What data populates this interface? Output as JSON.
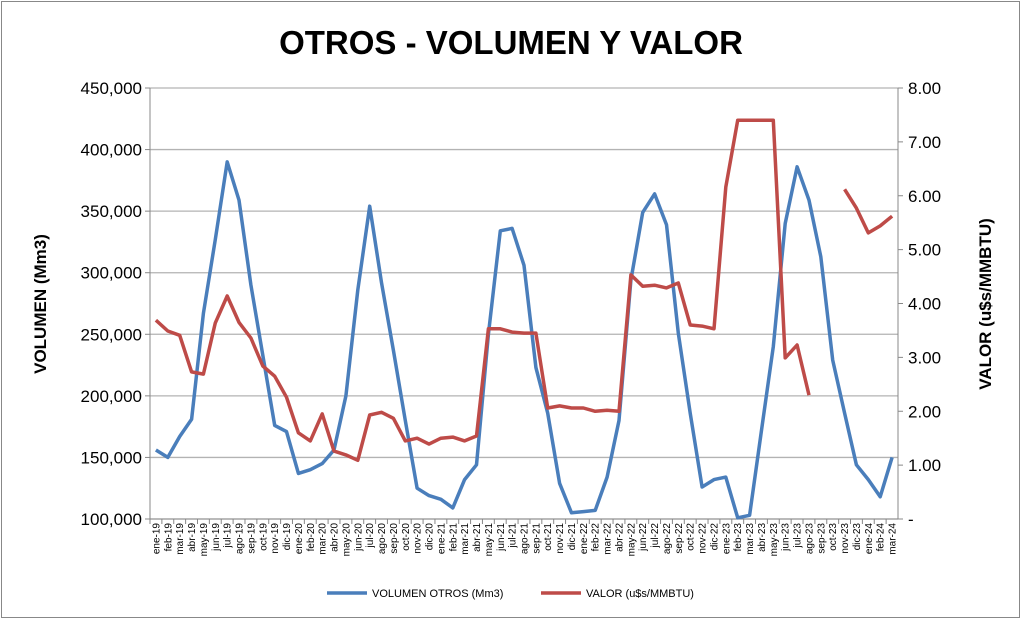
{
  "chart_data": {
    "type": "line",
    "title": "OTROS - VOLUMEN Y VALOR",
    "ylabel": "VOLUMEN (Mm3)",
    "y2label": "VALOR (u$s/MMBTU)",
    "ylim": [
      100000,
      450000
    ],
    "y2lim": [
      0,
      8
    ],
    "yticks": [
      "100,000",
      "150,000",
      "200,000",
      "250,000",
      "300,000",
      "350,000",
      "400,000",
      "450,000"
    ],
    "y2ticks": [
      "-",
      "1.00",
      "2.00",
      "3.00",
      "4.00",
      "5.00",
      "6.00",
      "7.00",
      "8.00"
    ],
    "grid": true,
    "legend": "bottom",
    "categories": [
      "ene-19",
      "feb-19",
      "mar-19",
      "abr-19",
      "may-19",
      "jun-19",
      "jul-19",
      "ago-19",
      "sep-19",
      "oct-19",
      "nov-19",
      "dic-19",
      "ene-20",
      "feb-20",
      "mar-20",
      "abr-20",
      "may-20",
      "jun-20",
      "jul-20",
      "ago-20",
      "sep-20",
      "oct-20",
      "nov-20",
      "dic-20",
      "ene-21",
      "feb-21",
      "mar-21",
      "abr-21",
      "may-21",
      "jun-21",
      "jul-21",
      "ago-21",
      "sep-21",
      "oct-21",
      "nov-21",
      "dic-21",
      "ene-22",
      "feb-22",
      "mar-22",
      "abr-22",
      "may-22",
      "jun-22",
      "jul-22",
      "ago-22",
      "sep-22",
      "oct-22",
      "nov-22",
      "dic-22",
      "ene-23",
      "feb-23",
      "mar-23",
      "abr-23",
      "may-23",
      "jun-23",
      "jul-23",
      "ago-23",
      "sep-23",
      "oct-23",
      "nov-23",
      "dic-23",
      "ene-24",
      "feb-24",
      "mar-24"
    ],
    "series": [
      {
        "name": "VOLUMEN OTROS (Mm3)",
        "axis": "left",
        "color": "#4a7ebb",
        "values": [
          156000,
          150000,
          167000,
          181000,
          267000,
          327000,
          390000,
          359000,
          290000,
          233000,
          176000,
          171000,
          137000,
          140000,
          145000,
          156000,
          200000,
          286000,
          354000,
          292000,
          237000,
          180000,
          125000,
          119000,
          116000,
          109000,
          132000,
          144000,
          250000,
          334000,
          336000,
          306000,
          223000,
          186000,
          129000,
          105000,
          106000,
          107000,
          134000,
          180000,
          294000,
          349000,
          364000,
          339000,
          251000,
          186000,
          126000,
          132000,
          134000,
          101000,
          103000,
          172000,
          240000,
          340000,
          386000,
          359000,
          313000,
          229000,
          186000,
          144000,
          132000,
          118000,
          150000
        ]
      },
      {
        "name": "VALOR (u$s/MMBTU)",
        "axis": "right",
        "color": "#be4b48",
        "values": [
          3.69,
          3.49,
          3.41,
          2.73,
          2.69,
          3.64,
          4.14,
          3.65,
          3.36,
          2.84,
          2.65,
          2.26,
          1.6,
          1.45,
          1.95,
          1.26,
          1.19,
          1.09,
          1.93,
          1.98,
          1.87,
          1.45,
          1.5,
          1.39,
          1.5,
          1.52,
          1.45,
          1.54,
          3.53,
          3.53,
          3.47,
          3.45,
          3.45,
          2.06,
          2.1,
          2.06,
          2.06,
          2.0,
          2.02,
          2.0,
          4.53,
          4.32,
          4.34,
          4.29,
          4.38,
          3.6,
          3.58,
          3.53,
          6.16,
          7.4,
          7.4,
          7.4,
          7.4,
          2.99,
          3.23,
          2.3,
          null,
          null,
          6.12,
          5.77,
          5.31,
          5.44,
          5.62
        ]
      }
    ]
  }
}
